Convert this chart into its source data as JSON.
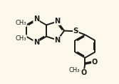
{
  "bg_color": "#fcf8ec",
  "bond_color": "#1a1a1a",
  "atom_color": "#1a1a1a",
  "line_width": 1.4,
  "figsize": [
    1.67,
    1.19
  ],
  "dpi": 100,
  "xlim": [
    0,
    10
  ],
  "ylim": [
    0,
    7.14
  ]
}
